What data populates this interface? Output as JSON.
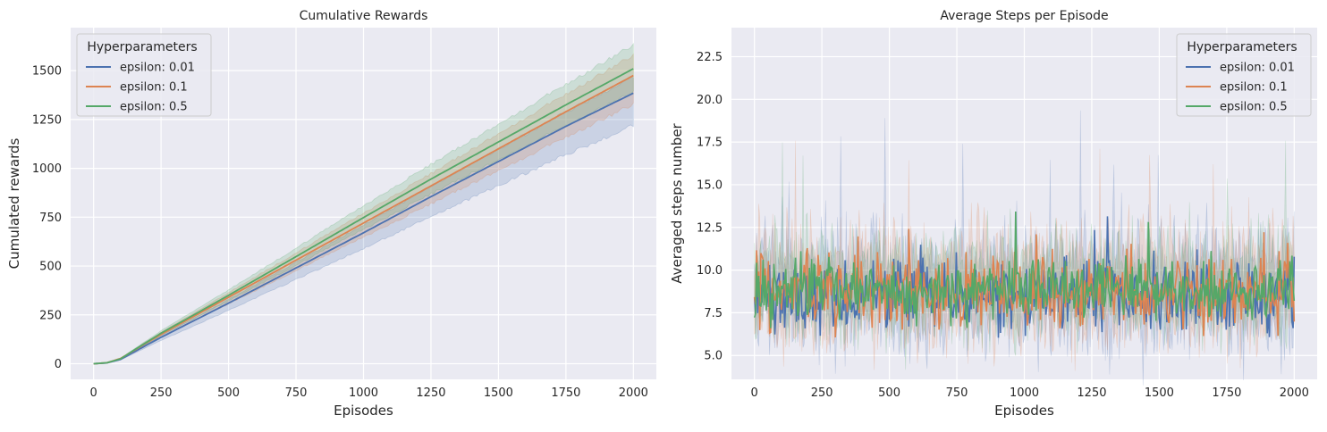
{
  "chart_data": [
    {
      "type": "line",
      "title": "Cumulative Rewards",
      "xlabel": "Episodes",
      "ylabel": "Cumulated rewards",
      "xlim": [
        -85,
        2085
      ],
      "ylim": [
        -80,
        1720
      ],
      "xticks": [
        0,
        250,
        500,
        750,
        1000,
        1250,
        1500,
        1750,
        2000
      ],
      "yticks": [
        0,
        250,
        500,
        750,
        1000,
        1250,
        1500
      ],
      "grid": true,
      "legend": {
        "title": "Hyperparameters",
        "placement": "top-left"
      },
      "series": [
        {
          "name": "epsilon: 0.01",
          "color": "#4c72b0",
          "x": [
            0,
            50,
            100,
            150,
            200,
            250,
            500,
            750,
            1000,
            1250,
            1500,
            1750,
            2000
          ],
          "y": [
            0,
            4,
            22,
            60,
            98,
            135,
            310,
            490,
            670,
            855,
            1035,
            1215,
            1385
          ],
          "band": [
            0.12,
            0.06
          ]
        },
        {
          "name": "epsilon: 0.1",
          "color": "#dd8452",
          "x": [
            0,
            50,
            100,
            150,
            200,
            250,
            500,
            750,
            1000,
            1250,
            1500,
            1750,
            2000
          ],
          "y": [
            0,
            5,
            27,
            68,
            110,
            150,
            340,
            530,
            720,
            910,
            1100,
            1290,
            1475
          ],
          "band": [
            0.1,
            0.07
          ]
        },
        {
          "name": "epsilon: 0.5",
          "color": "#55a868",
          "x": [
            0,
            50,
            100,
            150,
            200,
            250,
            500,
            750,
            1000,
            1250,
            1500,
            1750,
            2000
          ],
          "y": [
            0,
            5,
            25,
            70,
            113,
            156,
            350,
            548,
            748,
            945,
            1135,
            1325,
            1510
          ],
          "band": [
            0.08,
            0.08
          ]
        }
      ]
    },
    {
      "type": "line",
      "title": "Average Steps per Episode",
      "xlabel": "Episodes",
      "ylabel": "Averaged steps number",
      "xlim": [
        -85,
        2085
      ],
      "ylim": [
        3.6,
        24.2
      ],
      "xticks": [
        0,
        250,
        500,
        750,
        1000,
        1250,
        1500,
        1750,
        2000
      ],
      "yticks": [
        5.0,
        7.5,
        10.0,
        12.5,
        15.0,
        17.5,
        20.0,
        22.5
      ],
      "grid": true,
      "legend": {
        "title": "Hyperparameters",
        "placement": "top-right"
      },
      "series": [
        {
          "name": "epsilon: 0.01",
          "color": "#4c72b0",
          "mean": 8.6,
          "spread": 1.3,
          "seed": 7
        },
        {
          "name": "epsilon: 0.1",
          "color": "#dd8452",
          "mean": 8.7,
          "spread": 1.3,
          "seed": 13
        },
        {
          "name": "epsilon: 0.5",
          "color": "#55a868",
          "mean": 8.8,
          "spread": 1.1,
          "seed": 29
        }
      ],
      "x_range": [
        0,
        2000
      ]
    }
  ],
  "style": {
    "plot_bg": "#eaeaf2",
    "grid_color": "#ffffff",
    "text_color": "#262626"
  }
}
